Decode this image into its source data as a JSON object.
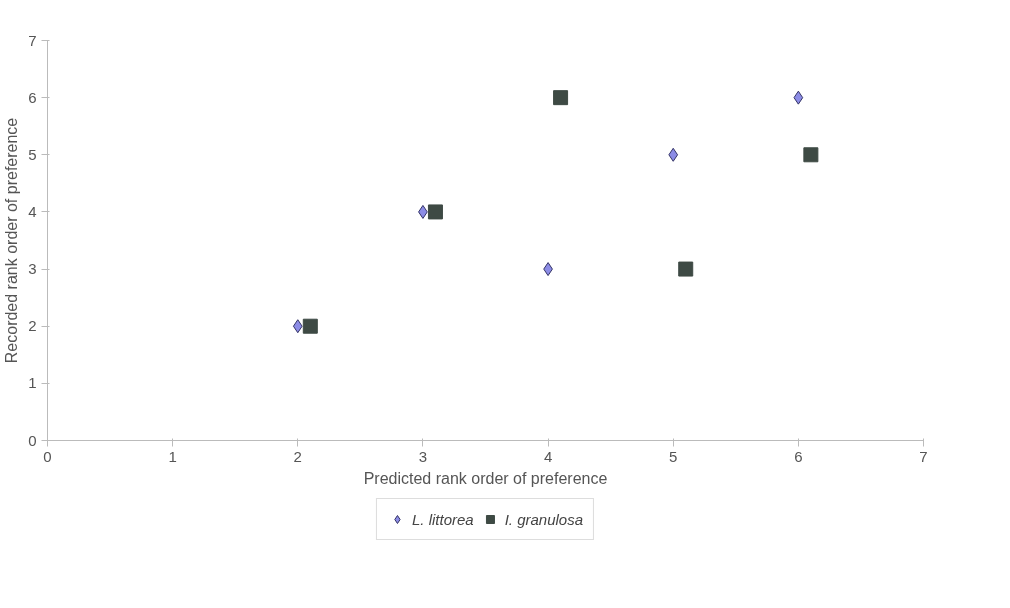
{
  "chart_data": {
    "type": "scatter",
    "xlabel": "Predicted rank order of preference",
    "ylabel": "Recorded rank order of preference",
    "series": [
      {
        "name": "L. littorea",
        "color": "#8c8ce6",
        "marker": "diamond",
        "x": [
          2,
          3,
          4,
          5,
          6
        ],
        "values": [
          2,
          4,
          3,
          5,
          6
        ]
      },
      {
        "name": "I. granulosa",
        "color": "#3e4a44",
        "marker": "square",
        "x": [
          2.1,
          3.1,
          4.1,
          5.1,
          6.1
        ],
        "values": [
          2,
          4,
          6,
          3,
          5
        ]
      }
    ],
    "xlim": [
      0,
      7
    ],
    "ylim": [
      0,
      7
    ],
    "xticks": [
      0,
      1,
      2,
      3,
      4,
      5,
      6,
      7
    ],
    "yticks": [
      0,
      1,
      2,
      3,
      4,
      5,
      6,
      7
    ],
    "grid": false,
    "legend": "bottom"
  }
}
